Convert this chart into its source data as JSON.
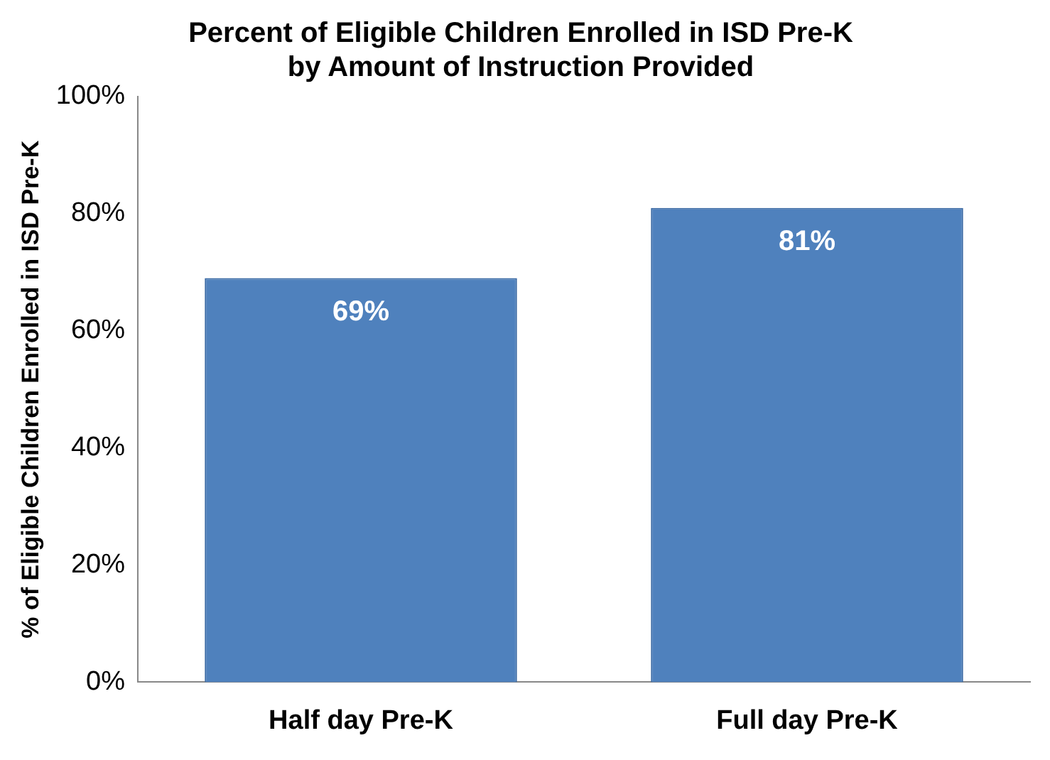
{
  "chart_data": {
    "type": "bar",
    "title": "Percent of Eligible Children Enrolled in ISD Pre-K\nby Amount of Instruction Provided",
    "ylabel": "% of Eligible Children Enrolled in ISD Pre-K",
    "categories": [
      "Half day Pre-K",
      "Full day Pre-K"
    ],
    "values": [
      69,
      81
    ],
    "value_labels": [
      "69%",
      "81%"
    ],
    "color": "#4f81bd",
    "ylim": [
      0,
      100
    ],
    "yticks": [
      {
        "value": 0,
        "label": "0%"
      },
      {
        "value": 20,
        "label": "20%"
      },
      {
        "value": 40,
        "label": "40%"
      },
      {
        "value": 60,
        "label": "60%"
      },
      {
        "value": 80,
        "label": "80%"
      },
      {
        "value": 100,
        "label": "100%"
      }
    ],
    "grid": false,
    "legend": false
  }
}
